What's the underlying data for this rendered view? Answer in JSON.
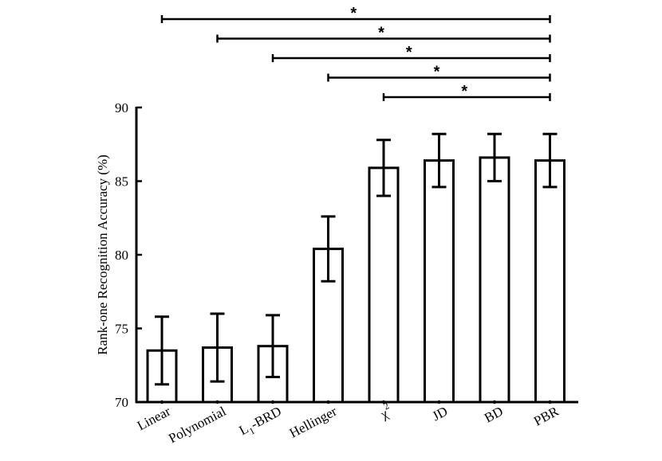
{
  "chart_data": {
    "type": "bar",
    "title": "",
    "xlabel": "",
    "ylabel": "Rank-one Recognition Accuracy (%)",
    "ylim": [
      70,
      90
    ],
    "yticks": [
      70,
      75,
      80,
      85,
      90
    ],
    "grid": false,
    "categories": [
      {
        "main": "Linear",
        "sub": "",
        "sup": "",
        "rest": ""
      },
      {
        "main": "Polynomial",
        "sub": "",
        "sup": "",
        "rest": ""
      },
      {
        "main": "L",
        "sub": "1",
        "sup": "",
        "rest": "-BRD"
      },
      {
        "main": "Hellinger",
        "sub": "",
        "sup": "",
        "rest": ""
      },
      {
        "main": "χ",
        "sub": "",
        "sup": "2",
        "rest": ""
      },
      {
        "main": "JD",
        "sub": "",
        "sup": "",
        "rest": ""
      },
      {
        "main": "BD",
        "sub": "",
        "sup": "",
        "rest": ""
      },
      {
        "main": "PBR",
        "sub": "",
        "sup": "",
        "rest": ""
      }
    ],
    "values": [
      73.5,
      73.7,
      73.8,
      80.4,
      85.9,
      86.4,
      86.6,
      86.4
    ],
    "error_low": [
      71.2,
      71.4,
      71.7,
      78.2,
      84.0,
      84.6,
      85.0,
      84.6
    ],
    "error_high": [
      75.8,
      76.0,
      75.9,
      82.6,
      87.8,
      88.2,
      88.2,
      88.2
    ],
    "significance": [
      {
        "from": 0,
        "to": 7,
        "label": "*"
      },
      {
        "from": 1,
        "to": 7,
        "label": "*"
      },
      {
        "from": 2,
        "to": 7,
        "label": "*"
      },
      {
        "from": 3,
        "to": 7,
        "label": "*"
      },
      {
        "from": 4,
        "to": 7,
        "label": "*"
      }
    ]
  }
}
